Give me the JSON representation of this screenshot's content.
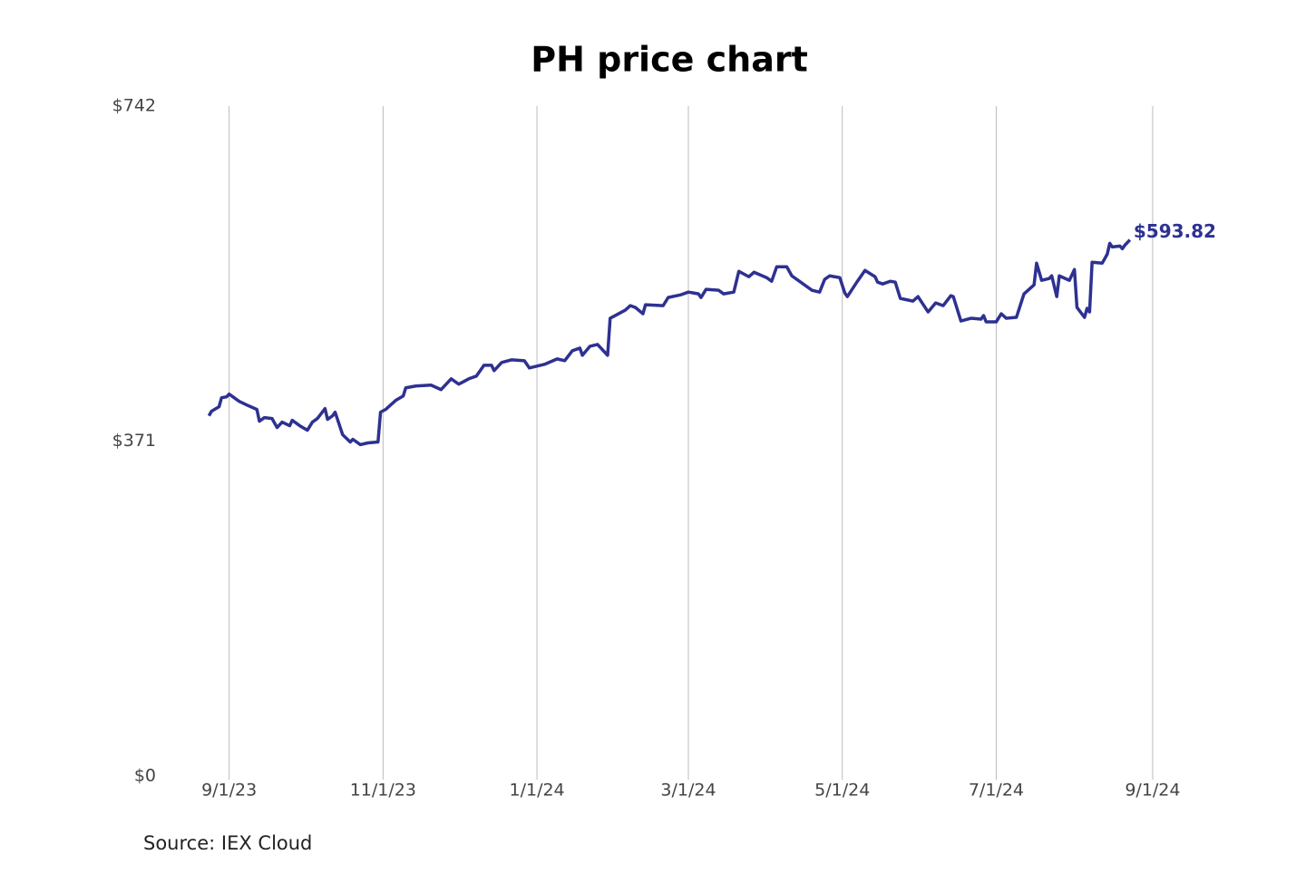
{
  "chart_data": {
    "type": "line",
    "title": "PH price chart",
    "source": "Source: IEX Cloud",
    "color": "#2e3191",
    "grid": "x",
    "xlim": [
      "8/12/23",
      "9/19/24"
    ],
    "xticks": [
      "9/1/23",
      "11/1/23",
      "1/1/24",
      "3/1/24",
      "5/1/24",
      "7/1/24",
      "9/1/24"
    ],
    "ylim": [
      0,
      742
    ],
    "yticks": [
      {
        "value": 0,
        "label": "$0"
      },
      {
        "value": 371,
        "label": "$371"
      },
      {
        "value": 742,
        "label": "$742"
      }
    ],
    "x": [
      "8/24/23",
      "8/25/23",
      "8/28/23",
      "8/29/23",
      "8/31/23",
      "9/1/23",
      "9/5/23",
      "9/8/23",
      "9/12/23",
      "9/13/23",
      "9/15/23",
      "9/18/23",
      "9/20/23",
      "9/22/23",
      "9/25/23",
      "9/26/23",
      "9/29/23",
      "10/2/23",
      "10/4/23",
      "10/6/23",
      "10/9/23",
      "10/10/23",
      "10/12/23",
      "10/13/23",
      "10/16/23",
      "10/19/23",
      "10/20/23",
      "10/23/23",
      "10/26/23",
      "10/30/23",
      "10/31/23",
      "11/2/23",
      "11/6/23",
      "11/9/23",
      "11/10/23",
      "11/14/23",
      "11/20/23",
      "11/24/23",
      "11/28/23",
      "12/1/23",
      "12/5/23",
      "12/8/23",
      "12/11/23",
      "12/14/23",
      "12/15/23",
      "12/18/23",
      "12/22/23",
      "12/27/23",
      "12/29/23",
      "1/4/24",
      "1/9/24",
      "1/12/24",
      "1/15/24",
      "1/18/24",
      "1/19/24",
      "1/22/24",
      "1/25/24",
      "1/29/24",
      "1/30/24",
      "2/1/24",
      "2/5/24",
      "2/7/24",
      "2/9/24",
      "2/12/24",
      "2/13/24",
      "2/20/24",
      "2/22/24",
      "2/27/24",
      "3/1/24",
      "3/5/24",
      "3/6/24",
      "3/8/24",
      "3/13/24",
      "3/15/24",
      "3/19/24",
      "3/21/24",
      "3/25/24",
      "3/27/24",
      "4/1/24",
      "4/3/24",
      "4/5/24",
      "4/9/24",
      "4/11/24",
      "4/15/24",
      "4/19/24",
      "4/22/24",
      "4/24/24",
      "4/26/24",
      "4/30/24",
      "5/2/24",
      "5/3/24",
      "5/7/24",
      "5/10/24",
      "5/14/24",
      "5/15/24",
      "5/17/24",
      "5/20/24",
      "5/22/24",
      "5/24/24",
      "5/29/24",
      "5/31/24",
      "6/4/24",
      "6/7/24",
      "6/10/24",
      "6/13/24",
      "6/14/24",
      "6/17/24",
      "6/21/24",
      "6/25/24",
      "6/26/24",
      "6/27/24",
      "7/1/24",
      "7/3/24",
      "7/5/24",
      "7/9/24",
      "7/12/24",
      "7/16/24",
      "7/17/24",
      "7/19/24",
      "7/22/24",
      "7/23/24",
      "7/25/24",
      "7/26/24",
      "7/30/24",
      "8/1/24",
      "8/2/24",
      "8/5/24",
      "8/6/24",
      "8/7/24",
      "8/8/24",
      "8/12/24",
      "8/14/24",
      "8/15/24",
      "8/16/24",
      "8/19/24",
      "8/20/24",
      "8/21/24",
      "8/23/24"
    ],
    "values": [
      399,
      404,
      409,
      419,
      420,
      423,
      415,
      411,
      406,
      393,
      397,
      396,
      386,
      392,
      388,
      394,
      388,
      383,
      392,
      396,
      407,
      395,
      399,
      403,
      378,
      370,
      373,
      367,
      369,
      370,
      403,
      406,
      416,
      421,
      430,
      432,
      433,
      428,
      440,
      434,
      440,
      443,
      455,
      455,
      449,
      458,
      461,
      460,
      452,
      456,
      462,
      460,
      471,
      474,
      466,
      476,
      478,
      466,
      507,
      510,
      516,
      521,
      519,
      512,
      522,
      521,
      530,
      533,
      536,
      534,
      530,
      539,
      538,
      534,
      536,
      559,
      553,
      558,
      552,
      548,
      564,
      564,
      554,
      546,
      538,
      536,
      550,
      554,
      552,
      535,
      531,
      548,
      560,
      553,
      547,
      545,
      548,
      547,
      529,
      526,
      531,
      514,
      524,
      521,
      532,
      531,
      504,
      507,
      506,
      510,
      503,
      503,
      512,
      507,
      508,
      534,
      544,
      568,
      549,
      551,
      554,
      531,
      554,
      549,
      561,
      519,
      508,
      518,
      514,
      569,
      568,
      578,
      590,
      586,
      587,
      584,
      588,
      593.82
    ],
    "annotation": {
      "value": 593.82,
      "label": "$593.82"
    }
  }
}
